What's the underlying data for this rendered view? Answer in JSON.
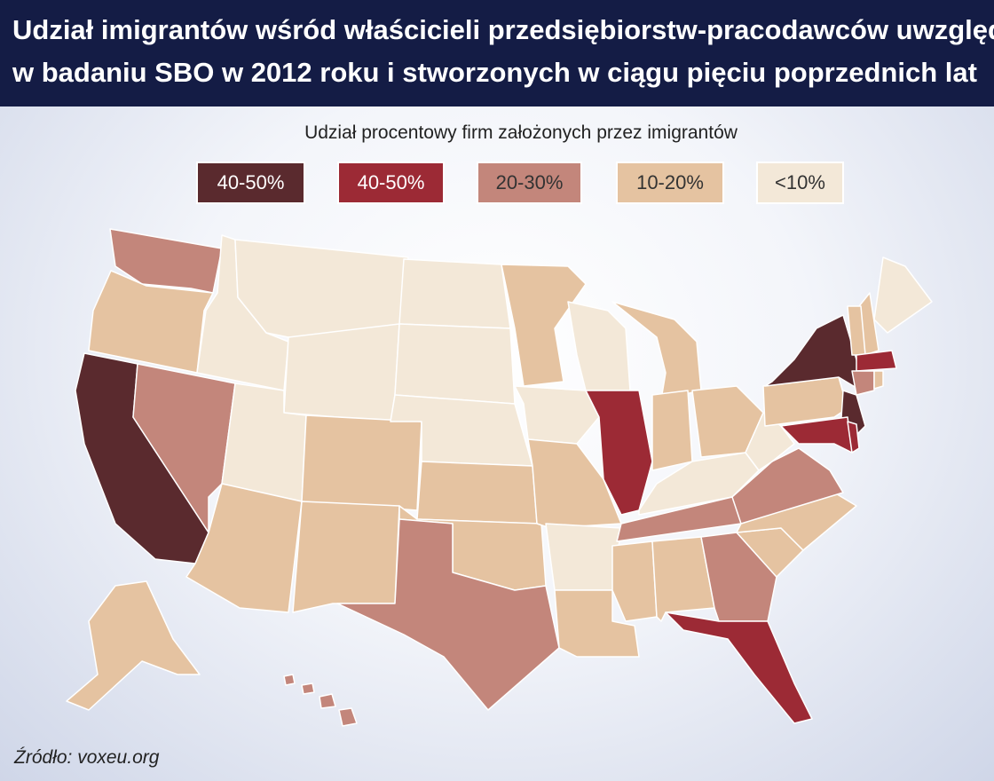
{
  "header": {
    "title_lines": [
      "Udział imigrantów wśród właścicieli przedsiębiorstw-pracodawców uwzględnionych",
      "w badaniu SBO w 2012 roku i stworzonych w ciągu pięciu poprzednich lat"
    ]
  },
  "legend": {
    "title": "Udział procentowy firm założonych przez imigrantów",
    "items": [
      {
        "label": "40-50%",
        "color": "#5a2a2e"
      },
      {
        "label": "40-50%",
        "color": "#9c2a35"
      },
      {
        "label": "20-30%",
        "color": "#c3867b"
      },
      {
        "label": "10-20%",
        "color": "#e5c3a1"
      },
      {
        "label": "<10%",
        "color": "#f3e8d8"
      }
    ]
  },
  "source": "Źródło: voxeu.org"
}
